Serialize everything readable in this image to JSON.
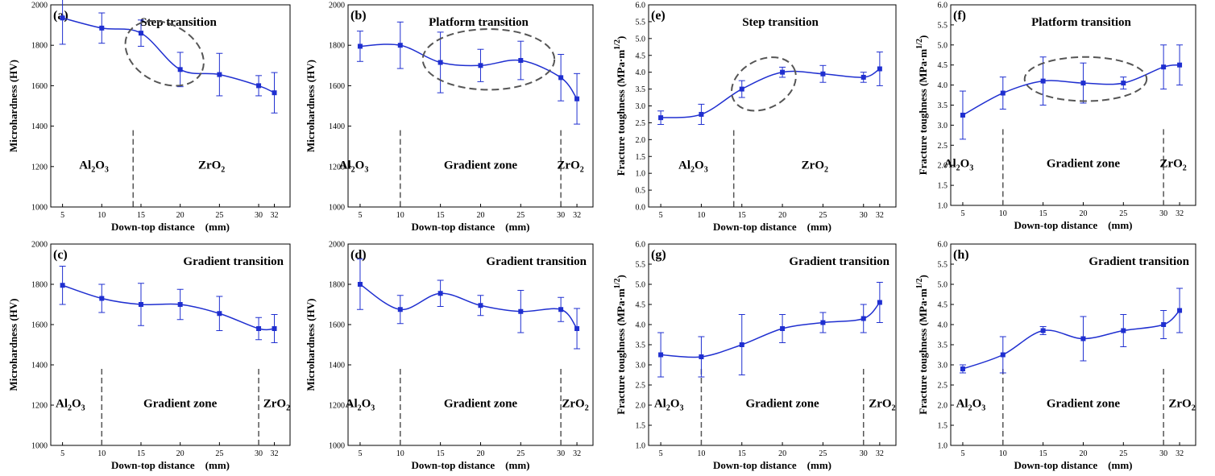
{
  "x_unit": "mm",
  "colors": {
    "series": "#1f2fd0",
    "dash": "#555555",
    "axis": "#000000"
  },
  "chart_data": [
    {
      "type": "line",
      "panel_label": "(a)",
      "title": "Step transition",
      "xlabel": "Down-top distance",
      "ylabel": "Microhardness (HV)",
      "ylim": [
        1000,
        2000
      ],
      "yticks": [
        1000,
        1200,
        1400,
        1600,
        1800,
        2000
      ],
      "x": [
        5,
        10,
        15,
        20,
        25,
        30,
        32
      ],
      "values": [
        1935,
        1885,
        1860,
        1680,
        1655,
        1600,
        1565
      ],
      "errors": [
        130,
        75,
        65,
        85,
        105,
        50,
        100
      ],
      "zones": [
        {
          "label_main": "Al",
          "sub1": "2",
          "mid": "O",
          "sub2": "3",
          "x_pos": 9
        },
        {
          "label_main": "ZrO",
          "sub1": "2",
          "x_pos": 24
        }
      ],
      "dividers": [
        14
      ],
      "ellipse": {
        "x_center": 18,
        "y_center": 1760,
        "x_radius": 5.3,
        "y_radius": 145,
        "rotate_deg": 28
      }
    },
    {
      "type": "line",
      "panel_label": "(b)",
      "title": "Platform transition",
      "xlabel": "Down-top distance",
      "ylabel": "Microhardness (HV)",
      "ylim": [
        1000,
        2000
      ],
      "yticks": [
        1000,
        1200,
        1400,
        1600,
        1800,
        2000
      ],
      "x": [
        5,
        10,
        15,
        20,
        25,
        30,
        32
      ],
      "values": [
        1795,
        1800,
        1715,
        1700,
        1725,
        1640,
        1535
      ],
      "errors": [
        75,
        115,
        150,
        80,
        95,
        115,
        125
      ],
      "zones": [
        {
          "label_main": "Al",
          "sub1": "2",
          "mid": "O",
          "sub2": "3",
          "x_pos": 4.2
        },
        {
          "label_main": "Gradient zone",
          "x_pos": 20
        },
        {
          "label_main": "ZrO",
          "sub1": "2",
          "x_pos": 31.2
        }
      ],
      "dividers": [
        10,
        30
      ],
      "ellipse": {
        "x_center": 21,
        "y_center": 1730,
        "x_radius": 8.2,
        "y_radius": 150,
        "rotate_deg": 0
      }
    },
    {
      "type": "line",
      "panel_label": "(e)",
      "title": "Step transition",
      "xlabel": "Down-top distance",
      "ylabel": "Fracture toughness (MPa·m",
      "ylabel_sup": "1/2",
      "ylabel_end": ")",
      "ylim": [
        0,
        6
      ],
      "yticks": [
        0.0,
        0.5,
        1.0,
        1.5,
        2.0,
        2.5,
        3.0,
        3.5,
        4.0,
        4.5,
        5.0,
        5.5,
        6.0
      ],
      "x": [
        5,
        10,
        15,
        20,
        25,
        30,
        32
      ],
      "values": [
        2.65,
        2.75,
        3.5,
        4.0,
        3.95,
        3.85,
        4.1
      ],
      "errors": [
        0.2,
        0.3,
        0.25,
        0.15,
        0.25,
        0.15,
        0.5
      ],
      "zones": [
        {
          "label_main": "Al",
          "sub1": "2",
          "mid": "O",
          "sub2": "3",
          "x_pos": 9
        },
        {
          "label_main": "ZrO",
          "sub1": "2",
          "x_pos": 24
        }
      ],
      "dividers": [
        14
      ],
      "ellipse": {
        "x_center": 17.7,
        "y_center": 3.65,
        "x_radius": 4.2,
        "y_radius": 0.72,
        "rotate_deg": -28
      }
    },
    {
      "type": "line",
      "panel_label": "(f)",
      "title": "Platform transition",
      "xlabel": "Down-top distance",
      "ylabel": "Fracture toughness (MPa·m",
      "ylabel_sup": "1/2",
      "ylabel_end": ")",
      "ylim": [
        1,
        6
      ],
      "yticks": [
        1.0,
        1.5,
        2.0,
        2.5,
        3.0,
        3.5,
        4.0,
        4.5,
        5.0,
        5.5,
        6.0
      ],
      "x": [
        5,
        10,
        15,
        20,
        25,
        30,
        32
      ],
      "values": [
        3.25,
        3.8,
        4.1,
        4.05,
        4.05,
        4.45,
        4.5
      ],
      "errors": [
        0.6,
        0.4,
        0.6,
        0.5,
        0.15,
        0.55,
        0.5
      ],
      "zones": [
        {
          "label_main": "Al",
          "sub1": "2",
          "mid": "O",
          "sub2": "3",
          "x_pos": 4.5
        },
        {
          "label_main": "Gradient zone",
          "x_pos": 20
        },
        {
          "label_main": "ZrO",
          "sub1": "2",
          "x_pos": 31.2
        }
      ],
      "dividers": [
        10,
        30
      ],
      "ellipse": {
        "x_center": 20.3,
        "y_center": 4.15,
        "x_radius": 7.6,
        "y_radius": 0.55,
        "rotate_deg": 0
      }
    },
    {
      "type": "line",
      "panel_label": "(c)",
      "title": "Gradient transition",
      "xlabel": "Down-top distance",
      "ylabel": "Microhardness (HV)",
      "ylim": [
        1000,
        2000
      ],
      "yticks": [
        1000,
        1200,
        1400,
        1600,
        1800,
        2000
      ],
      "x": [
        5,
        10,
        15,
        20,
        25,
        30,
        32
      ],
      "values": [
        1795,
        1730,
        1700,
        1700,
        1655,
        1580,
        1580
      ],
      "errors": [
        95,
        70,
        105,
        75,
        85,
        55,
        70
      ],
      "zones": [
        {
          "label_main": "Al",
          "sub1": "2",
          "mid": "O",
          "sub2": "3",
          "x_pos": 6
        },
        {
          "label_main": "Gradient zone",
          "x_pos": 20
        },
        {
          "label_main": "ZrO",
          "sub1": "2",
          "x_pos": 32.3
        }
      ],
      "dividers": [
        10,
        30
      ]
    },
    {
      "type": "line",
      "panel_label": "(d)",
      "title": "Gradient transition",
      "xlabel": "Down-top distance",
      "ylabel": "Microhardness (HV)",
      "ylim": [
        1000,
        2000
      ],
      "yticks": [
        1000,
        1200,
        1400,
        1600,
        1800,
        2000
      ],
      "x": [
        5,
        10,
        15,
        20,
        25,
        30,
        32
      ],
      "values": [
        1800,
        1675,
        1755,
        1695,
        1665,
        1675,
        1580
      ],
      "errors": [
        125,
        70,
        65,
        50,
        105,
        60,
        100
      ],
      "zones": [
        {
          "label_main": "Al",
          "sub1": "2",
          "mid": "O",
          "sub2": "3",
          "x_pos": 5
        },
        {
          "label_main": "Gradient zone",
          "x_pos": 20
        },
        {
          "label_main": "ZrO",
          "sub1": "2",
          "x_pos": 31.8
        }
      ],
      "dividers": [
        10,
        30
      ]
    },
    {
      "type": "line",
      "panel_label": "(g)",
      "title": "Gradient transition",
      "xlabel": "Down-top distance",
      "ylabel": "Fracture toughness (MPa·m",
      "ylabel_sup": "1/2",
      "ylabel_end": ")",
      "ylim": [
        1,
        6
      ],
      "yticks": [
        1.0,
        1.5,
        2.0,
        2.5,
        3.0,
        3.5,
        4.0,
        4.5,
        5.0,
        5.5,
        6.0
      ],
      "x": [
        5,
        10,
        15,
        20,
        25,
        30,
        32
      ],
      "values": [
        3.25,
        3.2,
        3.5,
        3.9,
        4.05,
        4.15,
        4.55
      ],
      "errors": [
        0.55,
        0.5,
        0.75,
        0.35,
        0.25,
        0.35,
        0.5
      ],
      "zones": [
        {
          "label_main": "Al",
          "sub1": "2",
          "mid": "O",
          "sub2": "3",
          "x_pos": 6
        },
        {
          "label_main": "Gradient zone",
          "x_pos": 20
        },
        {
          "label_main": "ZrO",
          "sub1": "2",
          "x_pos": 32.3
        }
      ],
      "dividers": [
        10,
        30
      ]
    },
    {
      "type": "line",
      "panel_label": "(h)",
      "title": "Gradient transition",
      "xlabel": "Down-top distance",
      "ylabel": "Fracture toughness (MPa·m",
      "ylabel_sup": "1/2",
      "ylabel_end": ")",
      "ylim": [
        1,
        6
      ],
      "yticks": [
        1.0,
        1.5,
        2.0,
        2.5,
        3.0,
        3.5,
        4.0,
        4.5,
        5.0,
        5.5,
        6.0
      ],
      "x": [
        5,
        10,
        15,
        20,
        25,
        30,
        32
      ],
      "values": [
        2.9,
        3.25,
        3.85,
        3.65,
        3.85,
        4.0,
        4.35
      ],
      "errors": [
        0.1,
        0.45,
        0.1,
        0.55,
        0.4,
        0.35,
        0.55
      ],
      "zones": [
        {
          "label_main": "Al",
          "sub1": "2",
          "mid": "O",
          "sub2": "3",
          "x_pos": 6
        },
        {
          "label_main": "Gradient zone",
          "x_pos": 20
        },
        {
          "label_main": "ZrO",
          "sub1": "2",
          "x_pos": 32.3
        }
      ],
      "dividers": [
        10,
        30
      ]
    }
  ]
}
